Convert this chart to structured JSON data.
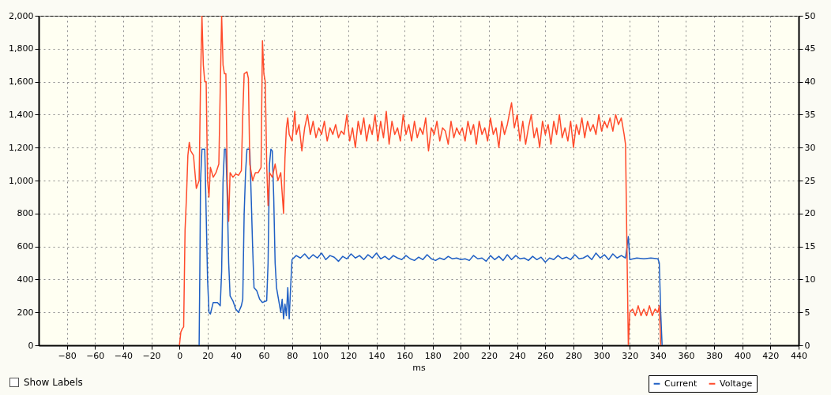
{
  "chart_data": {
    "type": "line",
    "xlabel": "ms",
    "xlim": [
      -100,
      440
    ],
    "xticks": [
      -80,
      -60,
      -40,
      -20,
      0,
      20,
      40,
      60,
      80,
      100,
      120,
      140,
      160,
      180,
      200,
      220,
      240,
      260,
      280,
      300,
      320,
      340,
      360,
      380,
      400,
      420,
      440
    ],
    "ylim": [
      0,
      2000
    ],
    "yticks": [
      0,
      200,
      400,
      600,
      800,
      {
        "value": 1000,
        "label": "1,000"
      },
      {
        "value": 1200,
        "label": "1,200"
      },
      {
        "value": 1400,
        "label": "1,400"
      },
      {
        "value": 1600,
        "label": "1,600"
      },
      {
        "value": 1800,
        "label": "1,800"
      },
      {
        "value": 2000,
        "label": "2,000"
      }
    ],
    "y2lim": [
      0,
      50
    ],
    "y2ticks": [
      0,
      5,
      10,
      15,
      20,
      25,
      30,
      35,
      40,
      45,
      50
    ],
    "grid": true,
    "legend": "bottom right",
    "line_style": "solid",
    "marker": "none",
    "annotations": [
      "Show Labels"
    ],
    "series": [
      {
        "name": "Current",
        "color": "#1f5fc4",
        "x": [
          14,
          14.5,
          15,
          16,
          18,
          19,
          20,
          21,
          22,
          24,
          27,
          29,
          30,
          31,
          32,
          33,
          34,
          35,
          36,
          38,
          40,
          42,
          44,
          45,
          46,
          47,
          48,
          50,
          51,
          52,
          53,
          55,
          57,
          59,
          62,
          63,
          64,
          65,
          66,
          67,
          68,
          69,
          70,
          72,
          73,
          74,
          75,
          76,
          77,
          78,
          79,
          80,
          83,
          86,
          89,
          92,
          95,
          98,
          101,
          104,
          107,
          110,
          113,
          116,
          119,
          122,
          125,
          128,
          131,
          134,
          137,
          140,
          143,
          146,
          149,
          152,
          155,
          158,
          161,
          164,
          167,
          170,
          173,
          176,
          179,
          182,
          185,
          188,
          191,
          194,
          197,
          200,
          203,
          206,
          209,
          212,
          215,
          218,
          221,
          224,
          227,
          230,
          233,
          236,
          239,
          242,
          245,
          248,
          251,
          254,
          257,
          260,
          263,
          266,
          269,
          272,
          275,
          278,
          281,
          284,
          287,
          290,
          293,
          296,
          299,
          302,
          305,
          308,
          311,
          314,
          317,
          319,
          320,
          325,
          330,
          335,
          340,
          341,
          342,
          343
        ],
        "values": [
          0,
          450,
          1000,
          1190,
          1190,
          800,
          400,
          200,
          190,
          260,
          260,
          240,
          450,
          1000,
          1190,
          1190,
          900,
          500,
          300,
          270,
          220,
          200,
          240,
          280,
          800,
          1050,
          1190,
          1190,
          900,
          600,
          350,
          330,
          280,
          260,
          270,
          500,
          1100,
          1190,
          1180,
          900,
          500,
          350,
          300,
          200,
          280,
          160,
          250,
          180,
          350,
          160,
          350,
          520,
          545,
          530,
          555,
          525,
          550,
          530,
          560,
          520,
          545,
          535,
          510,
          540,
          525,
          555,
          530,
          545,
          520,
          550,
          530,
          560,
          525,
          540,
          520,
          545,
          530,
          520,
          545,
          525,
          515,
          535,
          520,
          550,
          525,
          515,
          530,
          520,
          540,
          525,
          530,
          520,
          525,
          515,
          545,
          525,
          530,
          510,
          545,
          520,
          540,
          515,
          550,
          520,
          545,
          525,
          530,
          515,
          540,
          520,
          535,
          505,
          530,
          520,
          545,
          525,
          535,
          520,
          550,
          525,
          530,
          545,
          520,
          560,
          530,
          550,
          520,
          555,
          530,
          545,
          530,
          660,
          520,
          530,
          525,
          530,
          525,
          500,
          200,
          0
        ]
      },
      {
        "name": "Voltage",
        "color": "#ff4b2b",
        "axis": "y2",
        "x": [
          0,
          1,
          2,
          3,
          4,
          5,
          6,
          7,
          8,
          10,
          12,
          14,
          15,
          16,
          17,
          18,
          19,
          20,
          21,
          22,
          24,
          26,
          28,
          30,
          31,
          32,
          33,
          34,
          35,
          36,
          38,
          40,
          42,
          44,
          45,
          46,
          48,
          49,
          50,
          52,
          54,
          56,
          58,
          59,
          60,
          61,
          62,
          63,
          64,
          66,
          68,
          70,
          72,
          74,
          75,
          76,
          77,
          78,
          80,
          82,
          83,
          85,
          87,
          89,
          91,
          93,
          95,
          97,
          99,
          101,
          103,
          105,
          107,
          109,
          111,
          113,
          115,
          117,
          119,
          121,
          123,
          125,
          127,
          129,
          131,
          133,
          135,
          137,
          139,
          141,
          143,
          145,
          147,
          149,
          151,
          153,
          155,
          157,
          159,
          161,
          163,
          165,
          167,
          169,
          171,
          173,
          175,
          177,
          179,
          181,
          183,
          185,
          187,
          189,
          191,
          193,
          195,
          197,
          199,
          201,
          203,
          205,
          207,
          209,
          211,
          213,
          215,
          217,
          219,
          221,
          223,
          225,
          227,
          229,
          231,
          233,
          236,
          238,
          240,
          242,
          244,
          246,
          248,
          250,
          252,
          254,
          256,
          258,
          260,
          262,
          264,
          266,
          268,
          270,
          272,
          274,
          276,
          278,
          280,
          282,
          284,
          286,
          288,
          290,
          292,
          294,
          296,
          298,
          300,
          302,
          304,
          306,
          308,
          310,
          312,
          314,
          316,
          317,
          318,
          319,
          320,
          322,
          324,
          326,
          328,
          330,
          332,
          334,
          336,
          338,
          340,
          341,
          342
        ],
        "values": [
          0,
          2,
          2.5,
          2.8,
          17.5,
          22.5,
          28.8,
          30.8,
          29.5,
          28.8,
          23.8,
          25,
          40,
          50,
          42.5,
          40,
          40,
          25,
          22.5,
          27,
          25.5,
          26.2,
          27.5,
          50,
          42.5,
          41.2,
          41.2,
          25,
          18.8,
          26.2,
          25.5,
          26,
          25.8,
          26.5,
          35,
          41.2,
          41.5,
          40.5,
          27.5,
          25,
          26.2,
          26.2,
          27,
          46.2,
          41.2,
          40,
          27.5,
          21.2,
          26.2,
          25.5,
          27.5,
          25,
          26.2,
          20,
          28.5,
          33,
          34.5,
          32,
          31,
          35.5,
          32,
          33.5,
          29.5,
          33,
          35,
          32,
          34,
          31.5,
          33,
          32,
          34,
          31,
          33,
          32,
          33.5,
          31.5,
          32.5,
          32,
          35,
          31,
          33,
          30,
          34,
          32,
          34.5,
          31,
          33.5,
          32,
          35,
          31,
          34,
          31.5,
          35.5,
          30.5,
          34,
          32,
          33,
          31,
          35,
          32,
          33.5,
          31,
          34,
          31.5,
          33,
          32,
          34.5,
          29.5,
          33,
          32,
          34,
          31,
          33,
          32.5,
          30.5,
          34,
          31.5,
          33,
          32,
          33,
          31,
          34,
          32,
          33.5,
          30.5,
          34,
          32,
          33,
          31,
          34.5,
          32,
          33,
          30,
          34,
          32,
          33.5,
          36.8,
          33,
          35,
          31,
          34,
          30.5,
          33,
          35,
          31.5,
          33,
          30,
          34,
          32,
          33.5,
          30.5,
          34,
          32,
          35,
          31.5,
          33,
          31,
          34,
          30,
          33.5,
          32,
          34.5,
          31.5,
          34,
          32.5,
          33.5,
          32,
          35,
          32.5,
          34,
          33,
          34.5,
          32.5,
          35,
          33.5,
          34.5,
          32,
          30.5,
          15,
          0,
          5,
          5.5,
          4.5,
          6,
          4.5,
          5.5,
          4.5,
          6,
          4.5,
          5.5,
          5,
          6,
          0
        ]
      }
    ]
  }
}
